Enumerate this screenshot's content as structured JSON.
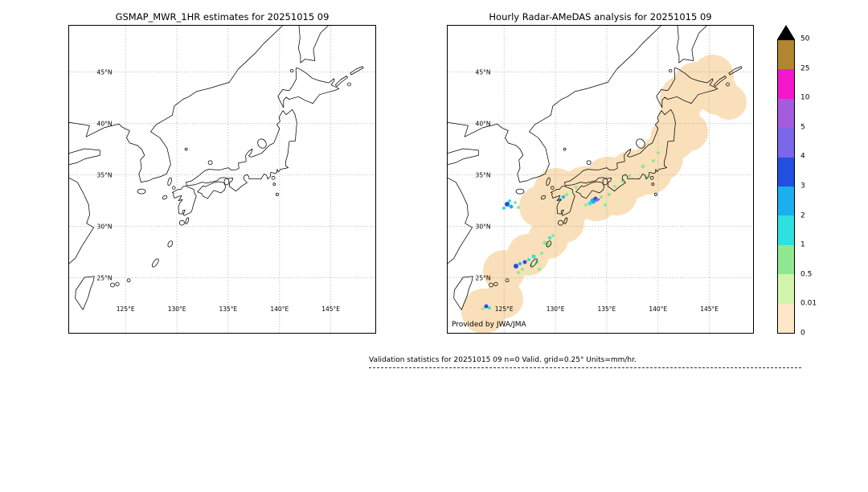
{
  "panels": [
    {
      "title": "GSMAP_MWR_1HR estimates for 20251015 09",
      "provider": null,
      "precip": null
    },
    {
      "title": "Hourly Radar-AMeDAS analysis for 20251015 09",
      "provider": "Provided by JWA/JMA",
      "precip": {
        "blob_color": "#f9e0ba",
        "blobs": [
          [
            45,
            355,
            28
          ],
          [
            70,
            340,
            24
          ],
          [
            70,
            305,
            26
          ],
          [
            100,
            285,
            26
          ],
          [
            125,
            265,
            25
          ],
          [
            145,
            245,
            25
          ],
          [
            115,
            225,
            26
          ],
          [
            135,
            205,
            28
          ],
          [
            150,
            220,
            30
          ],
          [
            170,
            205,
            30
          ],
          [
            185,
            215,
            28
          ],
          [
            200,
            195,
            32
          ],
          [
            210,
            210,
            26
          ],
          [
            230,
            185,
            30
          ],
          [
            250,
            180,
            30
          ],
          [
            265,
            165,
            28
          ],
          [
            280,
            140,
            28
          ],
          [
            288,
            115,
            26
          ],
          [
            300,
            132,
            24
          ],
          [
            292,
            90,
            28
          ],
          [
            310,
            75,
            30
          ],
          [
            330,
            62,
            26
          ],
          [
            336,
            85,
            26
          ],
          [
            350,
            95,
            22
          ]
        ],
        "spots": [
          [
            74,
            222,
            3,
            "3-4"
          ],
          [
            79,
            225,
            2.5,
            "2-3"
          ],
          [
            70,
            227,
            2,
            "1-2"
          ],
          [
            84,
            220,
            2,
            "0.5-1"
          ],
          [
            88,
            226,
            2,
            "0.5-1"
          ],
          [
            77,
            218,
            2,
            "1-2"
          ],
          [
            140,
            216,
            2,
            "1-2"
          ],
          [
            144,
            213,
            2,
            "2-3"
          ],
          [
            148,
            210,
            2,
            "0.5-1"
          ],
          [
            181,
            218,
            3.5,
            "2-3"
          ],
          [
            184,
            215,
            2.5,
            "3-4"
          ],
          [
            186,
            217,
            1.8,
            "5-10"
          ],
          [
            188,
            216,
            1.2,
            "10-25"
          ],
          [
            177,
            221,
            2.5,
            "1-2"
          ],
          [
            191,
            213,
            2,
            "0.5-1"
          ],
          [
            172,
            223,
            2,
            "0.5-1"
          ],
          [
            195,
            219,
            2,
            "0.01-0.5"
          ],
          [
            160,
            201,
            2,
            "0.5-1"
          ],
          [
            152,
            208,
            2,
            "0.01-0.5"
          ],
          [
            201,
            210,
            2.2,
            "0.5-1"
          ],
          [
            208,
            200,
            2,
            "0.5-1"
          ],
          [
            218,
            193,
            2.5,
            "0.5-1"
          ],
          [
            226,
            187,
            2,
            "0.5-1"
          ],
          [
            196,
            223,
            2,
            "0.5-1"
          ],
          [
            212,
            219,
            2,
            "0.01-0.5"
          ],
          [
            166,
            196,
            1.8,
            "0.01-0.5"
          ],
          [
            243,
            175,
            2.5,
            "0.5-1"
          ],
          [
            251,
            181,
            2,
            "0.01-0.5"
          ],
          [
            256,
            168,
            2,
            "0.5-1"
          ],
          [
            262,
            158,
            1.8,
            "0.5-1"
          ],
          [
            247,
            188,
            1.8,
            "0.5-1"
          ],
          [
            268,
            150,
            1.8,
            "0.01-0.5"
          ],
          [
            254,
            148,
            1.8,
            "0.01-0.5"
          ],
          [
            85,
            299,
            3,
            "3-4"
          ],
          [
            90,
            296,
            2,
            "2-3"
          ],
          [
            96,
            294,
            2.5,
            "3-4"
          ],
          [
            101,
            291,
            2,
            "1-2"
          ],
          [
            107,
            287,
            2.5,
            "1-2"
          ],
          [
            93,
            303,
            2,
            "0.5-1"
          ],
          [
            111,
            294,
            2.5,
            "0.5-1"
          ],
          [
            117,
            283,
            2,
            "0.5-1"
          ],
          [
            121,
            270,
            2.5,
            "0.5-1"
          ],
          [
            127,
            264,
            2,
            "1-2"
          ],
          [
            131,
            261,
            2,
            "0.5-1"
          ],
          [
            100,
            309,
            2,
            "0.01-0.5"
          ],
          [
            114,
            303,
            2,
            "0.5-1"
          ],
          [
            88,
            307,
            2,
            "0.5-1"
          ],
          [
            104,
            298,
            2,
            "0.5-1"
          ],
          [
            125,
            272,
            2,
            "0.5-1"
          ],
          [
            130,
            267,
            1.8,
            "0.01-0.5"
          ],
          [
            48,
            349,
            2.5,
            "3-4"
          ],
          [
            52,
            351,
            2,
            "1-2"
          ],
          [
            44,
            352,
            1.8,
            "0.5-1"
          ],
          [
            302,
            82,
            1.8,
            "0.01-0.5"
          ]
        ]
      }
    }
  ],
  "map_grid": {
    "lat": [
      {
        "label": "45°N",
        "y": 57.6
      },
      {
        "label": "40°N",
        "y": 121.6
      },
      {
        "label": "35°N",
        "y": 185.6
      },
      {
        "label": "30°N",
        "y": 249.6
      },
      {
        "label": "25°N",
        "y": 313.6
      }
    ],
    "lon": [
      {
        "label": "125°E",
        "x": 70.2
      },
      {
        "label": "130°E",
        "x": 134.1
      },
      {
        "label": "135°E",
        "x": 197.9
      },
      {
        "label": "140°E",
        "x": 261.8
      },
      {
        "label": "145°E",
        "x": 325.6
      }
    ]
  },
  "palette": {
    "levels": {
      "0-0.01": "#fce8c8",
      "0.01-0.5": "#d2f5ae",
      "0.5-1": "#90e890",
      "1-2": "#2fe0e0",
      "2-3": "#1caff0",
      "3-4": "#2150e0",
      "4-5": "#7a68e8",
      "5-10": "#a55bdd",
      "10-25": "#f318cc",
      "25-50": "#b1862e"
    }
  },
  "colorbar": {
    "overflow_marker": "black-triangle",
    "segments": [
      {
        "color": "#b1862e",
        "top_label": "50"
      },
      {
        "color": "#f318cc",
        "top_label": "25"
      },
      {
        "color": "#a55bdd",
        "top_label": "10"
      },
      {
        "color": "#7a68e8",
        "top_label": "5"
      },
      {
        "color": "#2150e0",
        "top_label": "4"
      },
      {
        "color": "#1caff0",
        "top_label": "3"
      },
      {
        "color": "#2fe0e0",
        "top_label": "2"
      },
      {
        "color": "#90e890",
        "top_label": "1"
      },
      {
        "color": "#d2f5ae",
        "top_label": "0.5"
      },
      {
        "color": "#fce8c8",
        "top_label": "0.01"
      }
    ],
    "bottom_label": "0"
  },
  "footer": {
    "text": "Validation statistics for 20251015 09  n=0 Valid. grid=0.25° Units=mm/hr."
  },
  "chart_data": [
    {
      "type": "heatmap",
      "title": "GSMAP_MWR_1HR estimates for 20251015 09",
      "x_ticks": [
        "125°E",
        "130°E",
        "135°E",
        "140°E",
        "145°E"
      ],
      "y_ticks": [
        "45°N",
        "40°N",
        "35°N",
        "30°N",
        "25°N"
      ],
      "values": "no precipitation estimates plotted (n=0 valid grid points)"
    },
    {
      "type": "heatmap",
      "title": "Hourly Radar-AMeDAS analysis for 20251015 09",
      "x_ticks": [
        "125°E",
        "130°E",
        "135°E",
        "140°E",
        "145°E"
      ],
      "y_ticks": [
        "45°N",
        "40°N",
        "35°N",
        "30°N",
        "25°N"
      ],
      "legend_levels_mm_hr": [
        0,
        0.01,
        0.5,
        1,
        2,
        3,
        4,
        5,
        10,
        25,
        50
      ],
      "units": "mm/hr",
      "grid_resolution_deg": 0.25,
      "description": "Trace precipitation (0–0.5 mm/hr, tan shading) along the Japanese archipelago from the Ryukyu Islands through Kyushu, Shikoku, western/central Honshu, Tohoku and eastern Hokkaido; embedded cells of 0.5–10 mm/hr (green/cyan/blue) over northwest Kyushu, the Kii Channel area and the Ryukyu Islands, with isolated 10–25 mm/hr (magenta) near the Kii Channel."
    }
  ]
}
